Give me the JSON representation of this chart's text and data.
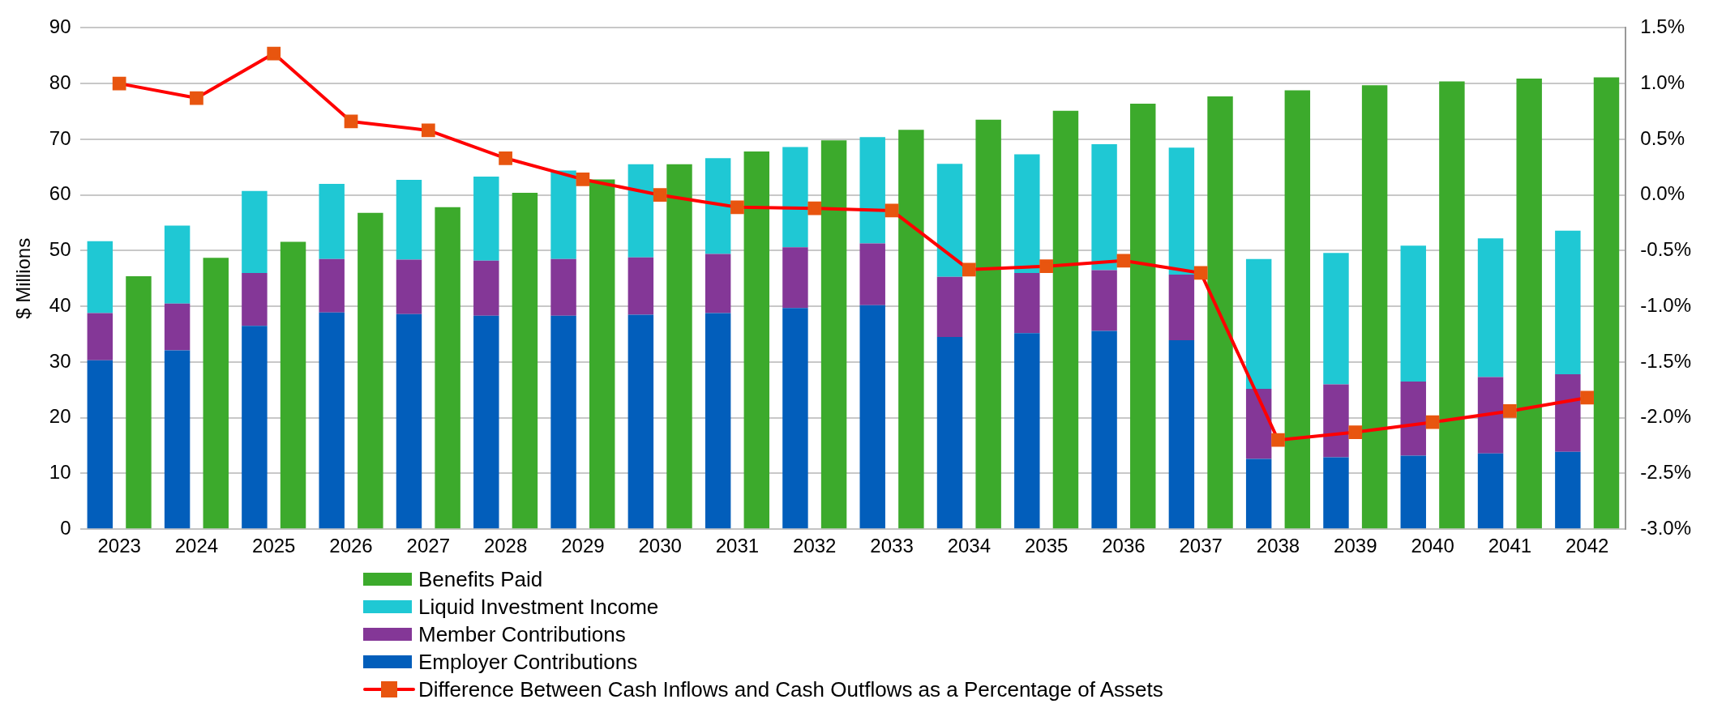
{
  "chart_data": {
    "type": "bar",
    "ylabel": "$ Millions",
    "categories": [
      "2023",
      "2024",
      "2025",
      "2026",
      "2027",
      "2028",
      "2029",
      "2030",
      "2031",
      "2032",
      "2033",
      "2034",
      "2035",
      "2036",
      "2037",
      "2038",
      "2039",
      "2040",
      "2041",
      "2042"
    ],
    "series": [
      {
        "name": "Employer Contributions",
        "color": "#025ebb",
        "base": [
          0,
          0,
          0,
          0,
          0,
          0,
          0,
          0,
          0,
          0,
          0,
          0,
          0,
          0,
          0,
          0,
          0,
          0,
          0,
          0
        ],
        "values": [
          30.3,
          32.1,
          36.5,
          38.9,
          38.6,
          38.3,
          38.3,
          38.5,
          38.8,
          39.7,
          40.2,
          34.5,
          35.2,
          35.6,
          33.9,
          12.6,
          12.9,
          13.2,
          13.6,
          13.9
        ]
      },
      {
        "name": "Member Contributions",
        "color": "#843797",
        "base": [
          30.3,
          32.1,
          36.5,
          38.9,
          38.6,
          38.3,
          38.3,
          38.5,
          38.8,
          39.7,
          40.2,
          34.5,
          35.2,
          35.6,
          33.9,
          12.6,
          12.9,
          13.2,
          13.6,
          13.9
        ],
        "values": [
          8.5,
          8.4,
          9.5,
          9.6,
          9.8,
          9.9,
          10.2,
          10.3,
          10.6,
          10.9,
          11.1,
          10.8,
          10.8,
          10.9,
          11.8,
          12.6,
          13.1,
          13.3,
          13.7,
          13.9
        ]
      },
      {
        "name": "Liquid Investment Income",
        "color": "#1fc8d4",
        "base": [
          38.8,
          40.5,
          46.0,
          48.5,
          48.4,
          48.2,
          48.5,
          48.8,
          49.4,
          50.6,
          51.3,
          45.3,
          46.0,
          46.5,
          45.7,
          25.2,
          26.0,
          26.5,
          27.3,
          27.8
        ],
        "values": [
          12.9,
          14.0,
          14.7,
          13.5,
          14.3,
          15.1,
          15.9,
          16.7,
          17.2,
          18.0,
          19.1,
          20.3,
          21.3,
          22.6,
          22.8,
          23.3,
          23.6,
          24.4,
          24.9,
          25.8
        ]
      },
      {
        "name": "Benefits Paid",
        "color": "#3caa2c",
        "base": [
          0,
          0,
          0,
          0,
          0,
          0,
          0,
          0,
          0,
          0,
          0,
          0,
          0,
          0,
          0,
          0,
          0,
          0,
          0,
          0
        ],
        "values": [
          45.4,
          48.7,
          51.6,
          56.8,
          57.8,
          60.4,
          62.8,
          65.5,
          67.8,
          69.8,
          71.7,
          73.5,
          75.1,
          76.4,
          77.7,
          78.8,
          79.7,
          80.4,
          80.9,
          81.1
        ]
      },
      {
        "name": "Difference Between Cash Inflows and Cash Outflows as a Percentage of Assets",
        "type": "line",
        "axis": "y2",
        "color": "#ff0000",
        "marker": "square",
        "values": [
          1.0,
          0.87,
          1.27,
          0.66,
          0.58,
          0.33,
          0.14,
          0.0,
          -0.11,
          -0.12,
          -0.14,
          -0.67,
          -0.64,
          -0.59,
          -0.7,
          -2.2,
          -2.13,
          -2.04,
          -1.94,
          -1.82
        ]
      }
    ],
    "ylim": [
      0,
      90
    ],
    "yticks": [
      0,
      10,
      20,
      30,
      40,
      50,
      60,
      70,
      80,
      90
    ],
    "y2lim": [
      -3.0,
      1.5
    ],
    "y2ticks": [
      {
        "value": -3.0,
        "label": "-3.0%"
      },
      {
        "value": -2.5,
        "label": "-2.5%"
      },
      {
        "value": -2.0,
        "label": "-2.0%"
      },
      {
        "value": -1.5,
        "label": "-1.5%"
      },
      {
        "value": -1.0,
        "label": "-1.0%"
      },
      {
        "value": -0.5,
        "label": "-0.5%"
      },
      {
        "value": 0.0,
        "label": "0.0%"
      },
      {
        "value": 0.5,
        "label": "0.5%"
      },
      {
        "value": 1.0,
        "label": "1.0%"
      },
      {
        "value": 1.5,
        "label": "1.5%"
      }
    ],
    "grid": "y",
    "legend": "bottom"
  }
}
